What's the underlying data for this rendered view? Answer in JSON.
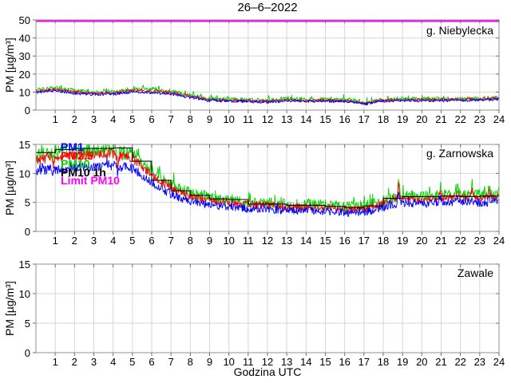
{
  "title": "26–6–2022",
  "xlabel": "Godzina UTC",
  "ylabel": "PM [µg/m³]",
  "colors": {
    "pm1": "#0000ff",
    "pm2_5": "#ff0000",
    "pm10": "#00d300",
    "pm10_1h": "#000000",
    "limit_pm10": "#ff00ff",
    "grid": "#d6d6d6",
    "axis_box": "#909090",
    "tick": "#707070",
    "label": "#000000"
  },
  "legend": {
    "items": [
      {
        "label": "PM1",
        "color_key": "pm1"
      },
      {
        "label": "PM2.5",
        "color_key": "pm2_5"
      },
      {
        "label": "PM10",
        "color_key": "pm10"
      },
      {
        "label": "PM10 1h",
        "color_key": "pm10_1h"
      },
      {
        "label": "Limit PM10",
        "color_key": "limit_pm10"
      }
    ]
  },
  "hour_ticks": [
    1,
    2,
    3,
    4,
    5,
    6,
    7,
    8,
    9,
    10,
    11,
    12,
    13,
    14,
    15,
    16,
    17,
    18,
    19,
    20,
    21,
    22,
    23,
    24
  ],
  "chart_data": [
    {
      "type": "line",
      "station": "g. Niebylecka",
      "xlim": [
        0,
        24
      ],
      "ylim": [
        0,
        50
      ],
      "yticks": [
        0,
        10,
        20,
        30,
        40,
        50
      ],
      "x_hours": [
        0,
        1,
        2,
        3,
        4,
        5,
        6,
        7,
        8,
        9,
        10,
        11,
        12,
        13,
        14,
        15,
        16,
        17,
        18,
        19,
        20,
        21,
        22,
        23,
        24
      ],
      "series": [
        {
          "name": "PM10",
          "color_key": "pm10",
          "hourly": [
            11.3,
            12.4,
            10.8,
            10.1,
            10.2,
            11.8,
            11.3,
            10.4,
            8.2,
            6.4,
            6.0,
            5.6,
            5.3,
            6.3,
            5.8,
            5.8,
            5.7,
            4.8,
            5.9,
            6.2,
            6.2,
            6.2,
            6.3,
            6.5,
            7.0
          ]
        },
        {
          "name": "PM2.5",
          "color_key": "pm2_5",
          "hourly": [
            10.6,
            11.6,
            10.1,
            9.5,
            9.6,
            11.0,
            10.6,
            9.8,
            7.7,
            6.0,
            5.6,
            5.2,
            4.9,
            5.9,
            5.4,
            5.4,
            5.3,
            4.4,
            5.5,
            5.8,
            5.8,
            5.8,
            5.9,
            6.1,
            6.5
          ]
        },
        {
          "name": "PM1",
          "color_key": "pm1",
          "hourly": [
            9.7,
            10.7,
            9.2,
            8.7,
            8.8,
            10.1,
            9.7,
            8.9,
            7.0,
            5.4,
            5.0,
            4.7,
            4.4,
            5.3,
            4.9,
            4.9,
            4.8,
            4.0,
            5.0,
            5.2,
            5.2,
            5.2,
            5.3,
            5.5,
            6.0
          ]
        }
      ],
      "spikes": [
        {
          "t": 8.85,
          "h": -0.6,
          "w": 0.15
        },
        {
          "t": 12.55,
          "h": -0.6,
          "w": 0.12
        },
        {
          "t": 17.1,
          "h": -0.9,
          "w": 0.3
        }
      ],
      "limit_line": {
        "name": "Limit PM10",
        "value": 50,
        "color_key": "limit_pm10"
      }
    },
    {
      "type": "line",
      "station": "g. Zarnowska",
      "xlim": [
        0,
        24
      ],
      "ylim": [
        0,
        15
      ],
      "yticks": [
        0,
        5,
        10,
        15
      ],
      "x_hours": [
        0,
        1,
        2,
        3,
        4,
        5,
        6,
        7,
        8,
        9,
        10,
        11,
        12,
        13,
        14,
        15,
        16,
        17,
        18,
        19,
        20,
        21,
        22,
        23,
        24
      ],
      "series": [
        {
          "name": "PM10",
          "color_key": "pm10",
          "hourly": [
            13.0,
            13.6,
            13.8,
            14.0,
            14.2,
            13.3,
            10.3,
            8.1,
            6.6,
            5.8,
            5.4,
            5.0,
            4.9,
            4.6,
            4.6,
            4.5,
            4.2,
            4.3,
            5.2,
            6.2,
            6.0,
            6.3,
            6.3,
            6.2,
            6.4
          ]
        },
        {
          "name": "PM2.5",
          "color_key": "pm2_5",
          "hourly": [
            12.2,
            12.8,
            13.0,
            13.2,
            13.4,
            12.6,
            9.7,
            7.5,
            6.0,
            5.3,
            4.9,
            4.6,
            4.5,
            4.2,
            4.2,
            4.1,
            3.8,
            3.9,
            4.8,
            5.7,
            5.5,
            5.8,
            5.8,
            5.7,
            5.9
          ]
        },
        {
          "name": "PM1",
          "color_key": "pm1",
          "hourly": [
            10.4,
            10.8,
            11.0,
            11.2,
            11.4,
            10.9,
            8.3,
            6.4,
            5.1,
            4.5,
            4.2,
            3.9,
            3.8,
            3.6,
            3.6,
            3.5,
            3.2,
            3.3,
            4.1,
            4.9,
            4.7,
            5.0,
            5.0,
            4.9,
            5.1
          ]
        }
      ],
      "step_series": {
        "name": "PM10 1h",
        "color_key": "pm10_1h",
        "hourly": [
          13.6,
          14.1,
          14.3,
          14.3,
          14.4,
          12.1,
          8.8,
          7.0,
          6.2,
          5.6,
          5.5,
          4.7,
          4.7,
          4.5,
          4.5,
          4.3,
          4.1,
          4.4,
          5.7,
          6.0,
          6.0,
          6.1,
          6.0,
          6.1
        ]
      },
      "spikes": [
        {
          "t": 0.9,
          "h": -1.5,
          "w": 0.05
        },
        {
          "t": 4.25,
          "h": -2.2,
          "w": 0.06
        },
        {
          "t": 18.8,
          "h": 2.8,
          "w": 0.07
        },
        {
          "t": 20.95,
          "h": 1.4,
          "w": 0.05
        },
        {
          "t": 21.85,
          "h": 1.9,
          "w": 0.05
        },
        {
          "t": 22.6,
          "h": 1.9,
          "w": 0.05
        },
        {
          "t": 23.5,
          "h": 1.7,
          "w": 0.05
        }
      ]
    },
    {
      "type": "line",
      "station": "Zawale",
      "xlim": [
        0,
        24
      ],
      "ylim": [
        0,
        15
      ],
      "yticks": [
        0,
        5,
        10,
        15
      ],
      "series": []
    }
  ]
}
